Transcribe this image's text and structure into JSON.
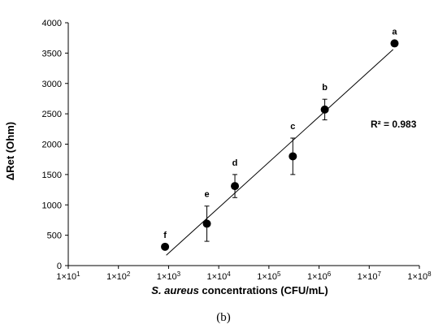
{
  "chart_data": {
    "type": "scatter",
    "xlabel_italic": "S. aureus",
    "xlabel_rest": " concentrations (CFU/mL)",
    "ylabel": "ΔRet (Ohm)",
    "xscale": "log",
    "xlim": [
      10,
      100000000
    ],
    "ylim": [
      0,
      4000
    ],
    "x_ticks": [
      {
        "mant": "1×10",
        "exp": "1"
      },
      {
        "mant": "1×10",
        "exp": "2"
      },
      {
        "mant": "1×10",
        "exp": "3"
      },
      {
        "mant": "1×10",
        "exp": "4"
      },
      {
        "mant": "1×10",
        "exp": "5"
      },
      {
        "mant": "1×10",
        "exp": "6"
      },
      {
        "mant": "1×10",
        "exp": "7"
      },
      {
        "mant": "1×10",
        "exp": "8"
      }
    ],
    "y_ticks": [
      "0",
      "500",
      "1000",
      "1500",
      "2000",
      "2500",
      "3000",
      "3500",
      "4000"
    ],
    "grid": false,
    "points": [
      {
        "label": "f",
        "x": 850,
        "y": 310,
        "err": 0
      },
      {
        "label": "e",
        "x": 5800,
        "y": 690,
        "err": 290
      },
      {
        "label": "d",
        "x": 21000,
        "y": 1310,
        "err": 190
      },
      {
        "label": "c",
        "x": 300000,
        "y": 1800,
        "err": 300
      },
      {
        "label": "b",
        "x": 1300000,
        "y": 2570,
        "err": 170
      },
      {
        "label": "a",
        "x": 32000000,
        "y": 3660,
        "err": 0
      }
    ],
    "trendline": {
      "x": [
        900,
        30000000
      ],
      "y": [
        170,
        3560
      ]
    },
    "annotation": "R² = 0.983",
    "marker_color": "#000000"
  },
  "caption": "(b)"
}
